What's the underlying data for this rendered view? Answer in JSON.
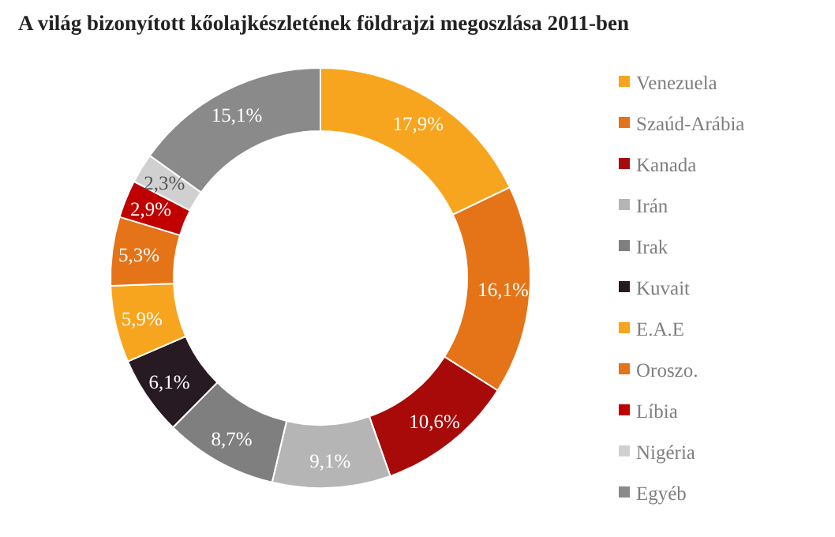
{
  "chart_data": {
    "type": "donut",
    "title": "A világ bizonyított kőolajkészletének földrajzi megoszlása 2011-ben",
    "categories": [
      "Venezuela",
      "Szaúd-Arábia",
      "Kanada",
      "Irán",
      "Irak",
      "Kuvait",
      "E.A.E",
      "Oroszo.",
      "Líbia",
      "Nigéria",
      "Egyéb"
    ],
    "values": [
      17.9,
      16.1,
      10.6,
      9.1,
      8.7,
      6.1,
      5.9,
      5.3,
      2.9,
      2.3,
      15.1
    ],
    "colors": [
      "#f7a51e",
      "#e57317",
      "#a80a0a",
      "#b5b5b5",
      "#7f7f7f",
      "#281a22",
      "#f7a51e",
      "#e57317",
      "#c00000",
      "#d0d0d0",
      "#8a8a8a"
    ],
    "value_labels": [
      "17,9%",
      "16,1%",
      "10,6%",
      "9,1%",
      "8,7%",
      "6,1%",
      "5,9%",
      "5,3%",
      "2,9%",
      "2,3%",
      "15,1%"
    ],
    "legend": "right"
  }
}
